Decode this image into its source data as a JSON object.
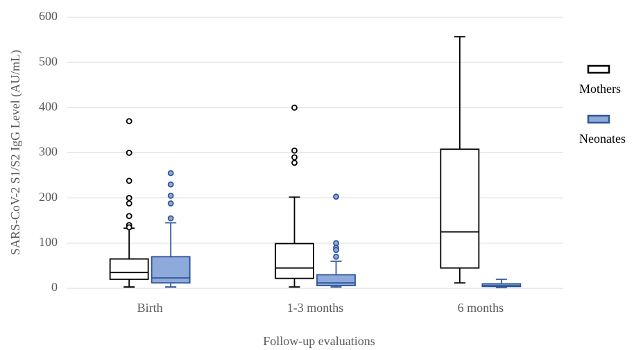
{
  "chart_data": {
    "type": "box",
    "x_label": "Follow-up evaluations",
    "y_label": "SARS-CoV-2 S1/S2 IgG Level (AU/mL)",
    "categories": [
      "Birth",
      "1-3 months",
      "6 months"
    ],
    "ylim": [
      0,
      600
    ],
    "yticks": [
      0,
      100,
      200,
      300,
      400,
      500,
      600
    ],
    "grid": true,
    "legend": "right",
    "series": [
      {
        "name": "Mothers",
        "color": "#ffffff",
        "edge_color": "#000000",
        "min": [
          3,
          3,
          12
        ],
        "q1": [
          20,
          22,
          45
        ],
        "median": [
          35,
          45,
          125
        ],
        "q3": [
          65,
          99,
          308
        ],
        "max": [
          133,
          202,
          557
        ],
        "outliers": [
          [
            370,
            300,
            238,
            200,
            188,
            160,
            140,
            135
          ],
          [
            400,
            305,
            290,
            278
          ],
          []
        ]
      },
      {
        "name": "Neonates",
        "color": "#8eaadb",
        "edge_color": "#2f5597",
        "min": [
          3,
          3,
          2
        ],
        "q1": [
          12,
          6,
          4
        ],
        "median": [
          23,
          12,
          6
        ],
        "q3": [
          70,
          30,
          10
        ],
        "max": [
          145,
          60,
          20
        ],
        "outliers": [
          [
            255,
            230,
            205,
            188,
            155
          ],
          [
            203,
            100,
            90,
            85,
            70
          ],
          []
        ]
      }
    ]
  }
}
